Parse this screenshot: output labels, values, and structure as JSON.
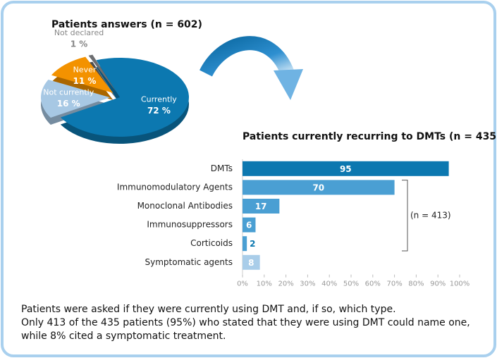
{
  "chart_data": [
    {
      "type": "pie",
      "title": "Patients answers (n = 602)",
      "categories": [
        "Currently",
        "Not currently",
        "Never",
        "Not declared"
      ],
      "values": [
        72,
        16,
        11,
        1
      ],
      "value_labels": [
        "72 %",
        "16 %",
        "11 %",
        "1 %"
      ],
      "colors": [
        "#0c78b0",
        "#a7c8e4",
        "#f39200",
        "#6d6e71"
      ]
    },
    {
      "type": "hbar",
      "title": "Patients currently recurring to DMTs (n = 435)",
      "categories": [
        "DMTs",
        "Immunomodulatory Agents",
        "Monoclonal Antibodies",
        "Immunosuppressors",
        "Corticoids",
        "Symptomatic agents"
      ],
      "values": [
        95,
        70,
        17,
        6,
        2,
        8
      ],
      "colors": [
        "#0c78b0",
        "#4a9fd3",
        "#4a9fd3",
        "#4a9fd3",
        "#4a9fd3",
        "#a9cde9"
      ],
      "xlim": [
        0,
        100
      ],
      "xticks": [
        {
          "value": 0,
          "label": "0%"
        },
        {
          "value": 10,
          "label": "10%"
        },
        {
          "value": 20,
          "label": "20%"
        },
        {
          "value": 30,
          "label": "30%"
        },
        {
          "value": 40,
          "label": "40%"
        },
        {
          "value": 50,
          "label": "50%"
        },
        {
          "value": 60,
          "label": "60%"
        },
        {
          "value": 70,
          "label": "70%"
        },
        {
          "value": 80,
          "label": "80%"
        },
        {
          "value": 90,
          "label": "90%"
        },
        {
          "value": 100,
          "label": "100%"
        }
      ],
      "annotation": "(n = 413)",
      "grid": false
    }
  ],
  "caption": {
    "lines": [
      "Patients were asked if they were currently using DMT and, if so, which type.",
      "Only 413 of the 435 patients (95%) who stated that they were using DMT could name one,",
      "while 8% cited a symptomatic treatment."
    ]
  }
}
